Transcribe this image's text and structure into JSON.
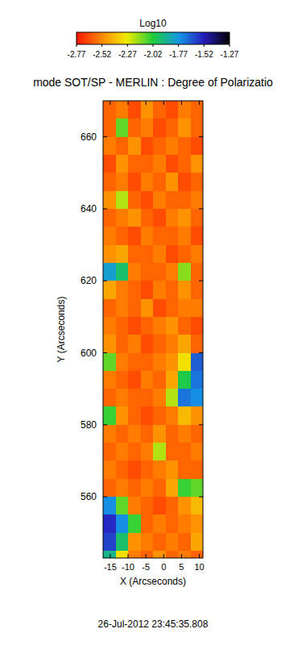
{
  "chart_data": {
    "type": "heatmap",
    "title": "mode SOT/SP - MERLIN : Degree of Polarizatio",
    "subtitle": "26-Jul-2012 23:45:35.808",
    "x_label": "X (Arcseconds)",
    "y_label": "Y (Arcseconds)",
    "xlim": [
      -17,
      11
    ],
    "ylim": [
      543,
      670
    ],
    "xticks": [
      -15,
      -10,
      -5,
      0,
      5,
      10
    ],
    "yticks": [
      560,
      580,
      600,
      620,
      640,
      660
    ],
    "x": [
      -15.25,
      -11.75,
      -8.25,
      -4.75,
      -1.25,
      2.25,
      5.75,
      9.25
    ],
    "y": [
      667.5,
      662.5,
      657.5,
      652.5,
      647.5,
      642.5,
      637.5,
      632.5,
      627.5,
      622.5,
      617.5,
      612.5,
      607.5,
      602.5,
      597.5,
      592.5,
      587.5,
      582.5,
      577.5,
      572.5,
      567.5,
      562.5,
      557.5,
      552.5,
      547.5,
      542.5
    ],
    "z": [
      [
        -2.6,
        -2.55,
        -2.65,
        -2.5,
        -2.6,
        -2.65,
        -2.55,
        -2.6
      ],
      [
        -2.6,
        -2.1,
        -2.6,
        -2.55,
        -2.65,
        -2.6,
        -2.5,
        -2.6
      ],
      [
        -2.55,
        -2.6,
        -2.5,
        -2.65,
        -2.6,
        -2.55,
        -2.6,
        -2.65
      ],
      [
        -2.65,
        -2.5,
        -2.6,
        -2.6,
        -2.55,
        -2.65,
        -2.6,
        -2.5
      ],
      [
        -2.6,
        -2.55,
        -2.65,
        -2.55,
        -2.6,
        -2.5,
        -2.65,
        -2.6
      ],
      [
        -2.5,
        -2.2,
        -2.6,
        -2.65,
        -2.55,
        -2.6,
        -2.6,
        -2.55
      ],
      [
        -2.6,
        -2.55,
        -2.5,
        -2.6,
        -2.65,
        -2.55,
        -2.5,
        -2.6
      ],
      [
        -2.55,
        -2.6,
        -2.65,
        -2.55,
        -2.6,
        -2.6,
        -2.55,
        -2.65
      ],
      [
        -2.5,
        -2.45,
        -2.6,
        -2.6,
        -2.55,
        -2.65,
        -2.6,
        -2.55
      ],
      [
        -1.8,
        -1.95,
        -2.55,
        -2.6,
        -2.6,
        -2.55,
        -2.15,
        -2.6
      ],
      [
        -2.45,
        -2.55,
        -2.6,
        -2.65,
        -2.55,
        -2.6,
        -2.5,
        -2.6
      ],
      [
        -2.6,
        -2.55,
        -2.6,
        -2.5,
        -2.65,
        -2.6,
        -2.55,
        -2.55
      ],
      [
        -2.55,
        -2.6,
        -2.65,
        -2.6,
        -2.55,
        -2.5,
        -2.6,
        -2.65
      ],
      [
        -2.5,
        -2.6,
        -2.55,
        -2.65,
        -2.6,
        -2.55,
        -2.45,
        -2.6
      ],
      [
        -2.1,
        -2.55,
        -2.6,
        -2.6,
        -2.55,
        -2.5,
        -2.3,
        -1.65
      ],
      [
        -2.55,
        -2.6,
        -2.65,
        -2.55,
        -2.6,
        -2.45,
        -2.0,
        -1.7
      ],
      [
        -2.6,
        -2.55,
        -2.6,
        -2.6,
        -2.55,
        -2.2,
        -1.7,
        -1.75
      ],
      [
        -2.05,
        -2.5,
        -2.6,
        -2.65,
        -2.6,
        -2.55,
        -2.4,
        -2.5
      ],
      [
        -2.55,
        -2.6,
        -2.55,
        -2.6,
        -2.5,
        -2.6,
        -2.55,
        -2.6
      ],
      [
        -2.6,
        -2.55,
        -2.6,
        -2.55,
        -2.2,
        -2.6,
        -2.6,
        -2.55
      ],
      [
        -2.55,
        -2.6,
        -2.65,
        -2.6,
        -2.55,
        -2.5,
        -2.6,
        -2.6
      ],
      [
        -2.6,
        -2.55,
        -2.6,
        -2.55,
        -2.6,
        -2.45,
        -2.05,
        -2.1
      ],
      [
        -1.75,
        -2.1,
        -2.55,
        -2.6,
        -2.65,
        -2.6,
        -2.5,
        -2.4
      ],
      [
        -1.55,
        -1.75,
        -2.05,
        -2.6,
        -2.55,
        -2.6,
        -2.55,
        -2.5
      ],
      [
        -1.6,
        -1.95,
        -2.5,
        -2.55,
        -2.6,
        -2.55,
        -2.6,
        -2.45
      ],
      [
        -1.9,
        -2.3,
        -2.55,
        -2.6,
        -2.5,
        -2.6,
        -2.55,
        -2.6
      ]
    ],
    "colorbar_label": "Log10",
    "colorbar_range": [
      -2.77,
      -1.27
    ],
    "colorbar_ticks": [
      -2.77,
      -2.52,
      -2.27,
      -2.02,
      -1.77,
      -1.52,
      -1.27
    ]
  }
}
